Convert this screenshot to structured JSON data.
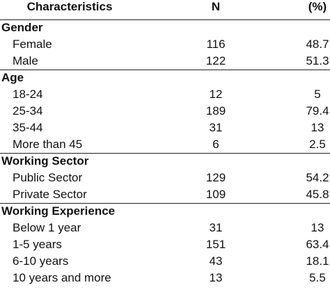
{
  "table": {
    "header": [
      "Characteristics",
      "N",
      "(%)"
    ],
    "sections": [
      {
        "title": "Gender",
        "rows": [
          [
            "Female",
            "116",
            "48.7"
          ],
          [
            "Male",
            "122",
            "51.3"
          ]
        ]
      },
      {
        "title": "Age",
        "rows": [
          [
            "18-24",
            "12",
            "5"
          ],
          [
            "25-34",
            "189",
            "79.4"
          ],
          [
            "35-44",
            "31",
            "13"
          ],
          [
            "More than 45",
            "6",
            "2.5"
          ]
        ]
      },
      {
        "title": "Working Sector",
        "rows": [
          [
            "Public Sector",
            "129",
            "54.2"
          ],
          [
            "Private Sector",
            "109",
            "45.8"
          ]
        ]
      },
      {
        "title": "Working Experience",
        "rows": [
          [
            "Below 1 year",
            "31",
            "13"
          ],
          [
            "1-5 years",
            "151",
            "63.4"
          ],
          [
            "6-10 years",
            "43",
            "18.1"
          ],
          [
            "10 years and more",
            "13",
            "5.5"
          ]
        ]
      }
    ]
  }
}
